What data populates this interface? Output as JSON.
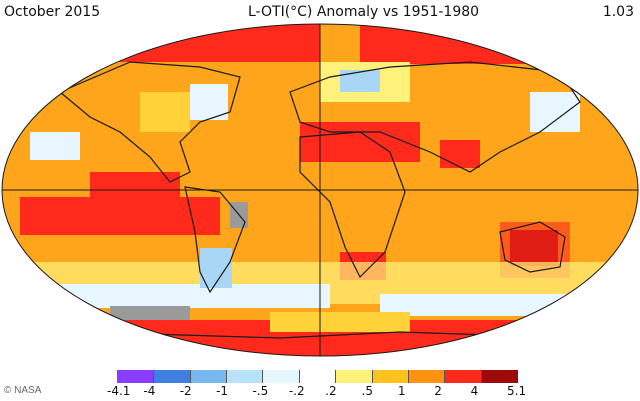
{
  "header": {
    "period": "October 2015",
    "title": "L-OTI(°C) Anomaly vs 1951-1980",
    "global_mean": "1.03"
  },
  "credit": "© NASA",
  "legend": {
    "labels": [
      "-4.1",
      "-4",
      "-2",
      "-1",
      "-.5",
      "-.2",
      ".2",
      ".5",
      "1",
      "2",
      "4",
      "5.1"
    ],
    "colors": [
      "#8a3cff",
      "#3f7fe0",
      "#78b8f0",
      "#b8e2f8",
      "#e6f6ff",
      "#ffffff",
      "#fff27a",
      "#ffc21c",
      "#ff9210",
      "#ff2a1c",
      "#9e0a0a"
    ]
  },
  "map_colors": {
    "ocean_base": "#ffa51c",
    "warm": "#ff9110",
    "hot": "#ff2a1c",
    "very_hot": "#b30e0e",
    "mild": "#ffd23a",
    "pale": "#fff27a",
    "cool": "#e8f7ff",
    "cold": "#a9d6f5",
    "no_data": "#9a9a9a",
    "coast": "#1a1a1a"
  }
}
